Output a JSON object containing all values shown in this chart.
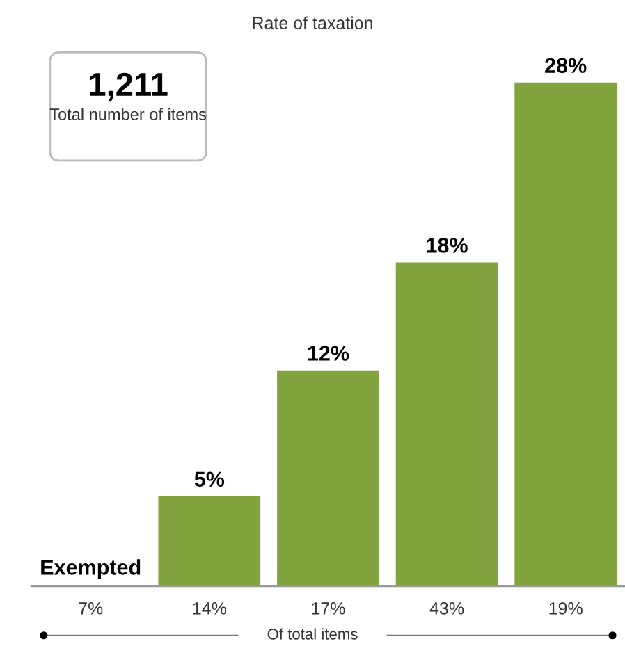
{
  "chart_data": {
    "type": "bar",
    "title": "Rate of taxation",
    "xlabel": "Of total items",
    "categories": [
      "7%",
      "14%",
      "17%",
      "43%",
      "19%"
    ],
    "values": [
      0,
      5,
      12,
      18,
      28
    ],
    "value_labels": [
      "Exempted",
      "5%",
      "12%",
      "18%",
      "28%"
    ],
    "color": "#82a43e",
    "ylim": [
      0,
      29.5
    ],
    "tick_labels": "x",
    "annotations": [
      "1,211",
      "Total number of items"
    ],
    "grid": false,
    "legend": false
  }
}
